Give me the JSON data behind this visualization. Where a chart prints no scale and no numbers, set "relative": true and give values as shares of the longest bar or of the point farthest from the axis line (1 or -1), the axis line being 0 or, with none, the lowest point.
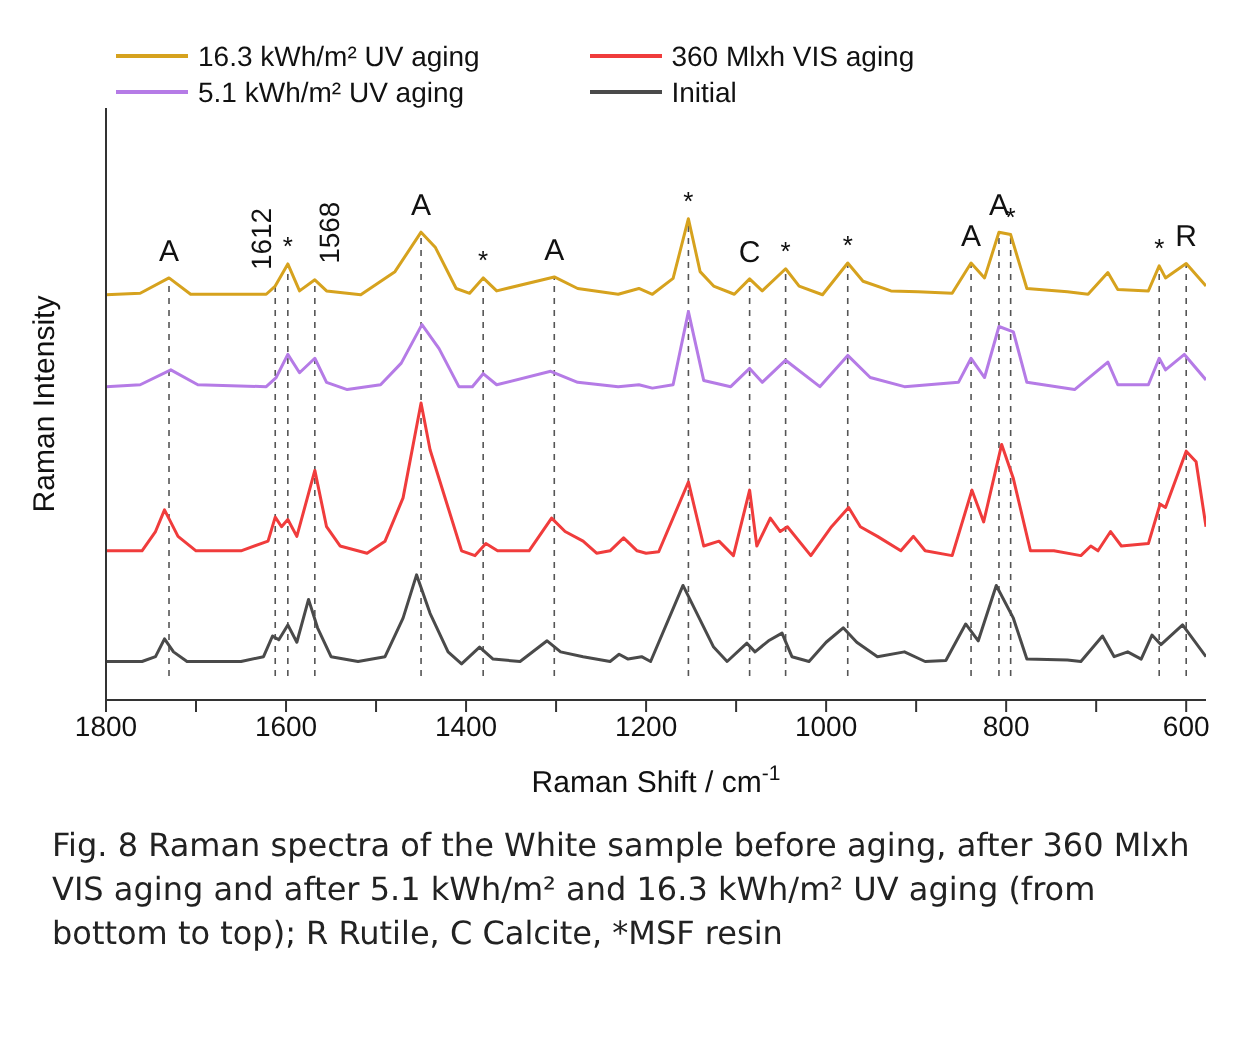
{
  "chart_data": {
    "type": "line",
    "relative": true,
    "xlabel": "Raman Shift / cm$^{-1}$",
    "ylabel": "Raman Intensity",
    "xlim": [
      1800,
      578
    ],
    "xticks": [
      1800,
      {
        "value": 1700,
        "label": null
      },
      1600,
      {
        "value": 1500,
        "label": null
      },
      1400,
      {
        "value": 1300,
        "label": null
      },
      1200,
      {
        "value": 1100,
        "label": null
      },
      1000,
      {
        "value": 900,
        "label": null
      },
      800,
      {
        "value": 700,
        "label": null
      },
      600
    ],
    "legend": "top left",
    "grid": false,
    "series": [
      {
        "name": "16.3 kWh/m² UV aging",
        "color": "#d6a21e",
        "x": [
          1800,
          1762,
          1730,
          1706,
          1622,
          1612,
          1598,
          1585,
          1568,
          1555,
          1517,
          1479,
          1450,
          1434,
          1411,
          1396,
          1381,
          1366,
          1302,
          1276,
          1231,
          1208,
          1193,
          1170,
          1153,
          1140,
          1125,
          1102,
          1085,
          1071,
          1045,
          1030,
          1004,
          976,
          959,
          928,
          898,
          860,
          839,
          824,
          808,
          795,
          777,
          732,
          709,
          687,
          676,
          642,
          630,
          623,
          600,
          578
        ],
        "values": [
          0.842,
          0.845,
          0.877,
          0.843,
          0.843,
          0.86,
          0.906,
          0.85,
          0.873,
          0.85,
          0.842,
          0.89,
          0.972,
          0.94,
          0.855,
          0.845,
          0.877,
          0.85,
          0.879,
          0.855,
          0.843,
          0.855,
          0.843,
          0.876,
          1,
          0.89,
          0.86,
          0.843,
          0.875,
          0.85,
          0.896,
          0.86,
          0.842,
          0.908,
          0.87,
          0.85,
          0.848,
          0.845,
          0.908,
          0.877,
          0.972,
          0.967,
          0.855,
          0.848,
          0.843,
          0.888,
          0.853,
          0.85,
          0.902,
          0.877,
          0.907,
          0.86
        ]
      },
      {
        "name": "360 Mlxh VIS aging",
        "color": "#f03c3c",
        "x": [
          1800,
          1760,
          1745,
          1735,
          1720,
          1700,
          1650,
          1620,
          1612,
          1605,
          1598,
          1588,
          1568,
          1555,
          1540,
          1510,
          1490,
          1470,
          1450,
          1440,
          1420,
          1405,
          1390,
          1378,
          1365,
          1330,
          1305,
          1290,
          1270,
          1255,
          1240,
          1225,
          1210,
          1200,
          1186,
          1153,
          1136,
          1119,
          1103,
          1085,
          1077,
          1062,
          1051,
          1043,
          1017,
          994,
          975,
          962,
          943,
          917,
          903,
          890,
          860,
          838,
          825,
          805,
          792,
          773,
          747,
          717,
          706,
          698,
          684,
          672,
          642,
          629,
          623,
          600,
          589,
          578
        ],
        "values": [
          0.31,
          0.31,
          0.35,
          0.395,
          0.34,
          0.31,
          0.31,
          0.33,
          0.38,
          0.36,
          0.375,
          0.34,
          0.477,
          0.36,
          0.32,
          0.305,
          0.33,
          0.42,
          0.617,
          0.52,
          0.4,
          0.31,
          0.3,
          0.325,
          0.31,
          0.31,
          0.378,
          0.35,
          0.33,
          0.305,
          0.31,
          0.337,
          0.31,
          0.305,
          0.308,
          0.453,
          0.32,
          0.33,
          0.3,
          0.436,
          0.32,
          0.378,
          0.35,
          0.36,
          0.3,
          0.36,
          0.4,
          0.36,
          0.34,
          0.31,
          0.34,
          0.31,
          0.3,
          0.436,
          0.37,
          0.531,
          0.46,
          0.31,
          0.31,
          0.3,
          0.32,
          0.31,
          0.35,
          0.32,
          0.325,
          0.407,
          0.4,
          0.517,
          0.495,
          0.36
        ]
      },
      {
        "name": "5.1 kWh/m² UV aging",
        "color": "#b57be6",
        "x": [
          1800,
          1762,
          1728,
          1698,
          1622,
          1611,
          1598,
          1585,
          1568,
          1555,
          1532,
          1495,
          1472,
          1449,
          1430,
          1408,
          1393,
          1381,
          1366,
          1306,
          1276,
          1231,
          1208,
          1193,
          1170,
          1153,
          1136,
          1106,
          1085,
          1071,
          1045,
          1007,
          976,
          951,
          913,
          853,
          839,
          824,
          808,
          792,
          777,
          724,
          687,
          676,
          642,
          630,
          623,
          602,
          578
        ],
        "values": [
          0.651,
          0.655,
          0.686,
          0.655,
          0.651,
          0.67,
          0.718,
          0.68,
          0.71,
          0.66,
          0.645,
          0.655,
          0.7,
          0.78,
          0.73,
          0.651,
          0.651,
          0.678,
          0.655,
          0.683,
          0.66,
          0.651,
          0.655,
          0.648,
          0.655,
          0.807,
          0.664,
          0.651,
          0.689,
          0.66,
          0.706,
          0.651,
          0.716,
          0.67,
          0.651,
          0.66,
          0.71,
          0.67,
          0.776,
          0.765,
          0.66,
          0.645,
          0.702,
          0.655,
          0.655,
          0.71,
          0.686,
          0.718,
          0.665
        ]
      },
      {
        "name": "Initial",
        "color": "#4a4a4a",
        "x": [
          1800,
          1760,
          1745,
          1735,
          1725,
          1710,
          1650,
          1625,
          1615,
          1608,
          1598,
          1588,
          1575,
          1565,
          1550,
          1520,
          1490,
          1470,
          1455,
          1440,
          1420,
          1405,
          1385,
          1370,
          1340,
          1310,
          1295,
          1270,
          1240,
          1230,
          1220,
          1205,
          1195,
          1159,
          1125,
          1110,
          1088,
          1079,
          1064,
          1049,
          1038,
          1019,
          1000,
          981,
          966,
          943,
          913,
          890,
          867,
          845,
          831,
          811,
          792,
          777,
          732,
          717,
          693,
          680,
          665,
          650,
          638,
          628,
          604,
          578
        ],
        "values": [
          0.08,
          0.08,
          0.09,
          0.127,
          0.1,
          0.08,
          0.08,
          0.09,
          0.133,
          0.125,
          0.156,
          0.12,
          0.209,
          0.15,
          0.09,
          0.08,
          0.09,
          0.17,
          0.26,
          0.18,
          0.1,
          0.075,
          0.11,
          0.085,
          0.08,
          0.123,
          0.1,
          0.09,
          0.08,
          0.095,
          0.085,
          0.09,
          0.08,
          0.238,
          0.11,
          0.08,
          0.118,
          0.1,
          0.123,
          0.139,
          0.09,
          0.08,
          0.12,
          0.15,
          0.12,
          0.09,
          0.1,
          0.08,
          0.082,
          0.158,
          0.123,
          0.238,
          0.17,
          0.085,
          0.083,
          0.08,
          0.133,
          0.09,
          0.1,
          0.085,
          0.135,
          0.115,
          0.156,
          0.09
        ]
      }
    ],
    "ref_lines": [
      {
        "axis": "x",
        "value": 1730,
        "color": "#555555",
        "line_style": "dashed"
      },
      {
        "axis": "x",
        "value": 1612,
        "color": "#555555",
        "line_style": "dashed"
      },
      {
        "axis": "x",
        "value": 1598,
        "color": "#555555",
        "line_style": "dashed"
      },
      {
        "axis": "x",
        "value": 1568,
        "color": "#555555",
        "line_style": "dashed"
      },
      {
        "axis": "x",
        "value": 1450,
        "color": "#555555",
        "line_style": "dashed"
      },
      {
        "axis": "x",
        "value": 1381,
        "color": "#555555",
        "line_style": "dashed"
      },
      {
        "axis": "x",
        "value": 1302,
        "color": "#555555",
        "line_style": "dashed"
      },
      {
        "axis": "x",
        "value": 1153,
        "color": "#555555",
        "line_style": "dashed"
      },
      {
        "axis": "x",
        "value": 1085,
        "color": "#555555",
        "line_style": "dashed"
      },
      {
        "axis": "x",
        "value": 1045,
        "color": "#555555",
        "line_style": "dashed"
      },
      {
        "axis": "x",
        "value": 976,
        "color": "#555555",
        "line_style": "dashed"
      },
      {
        "axis": "x",
        "value": 839,
        "color": "#555555",
        "line_style": "dashed"
      },
      {
        "axis": "x",
        "value": 808,
        "color": "#555555",
        "line_style": "dashed"
      },
      {
        "axis": "x",
        "value": 795,
        "color": "#555555",
        "line_style": "dashed"
      },
      {
        "axis": "x",
        "value": 630,
        "color": "#555555",
        "line_style": "dashed"
      },
      {
        "axis": "x",
        "value": 600,
        "color": "#555555",
        "line_style": "dashed"
      }
    ],
    "annotations": [
      {
        "text": "A",
        "x": 1730,
        "y": 0.877
      },
      {
        "text": "1612",
        "x": 1612,
        "y": 0.86
      },
      {
        "text": "*",
        "x": 1598,
        "y": 0.906
      },
      {
        "text": "1568",
        "x": 1568,
        "y": 0.873
      },
      {
        "text": "A",
        "x": 1450,
        "y": 0.972
      },
      {
        "text": "*",
        "x": 1381,
        "y": 0.877
      },
      {
        "text": "A",
        "x": 1302,
        "y": 0.879
      },
      {
        "text": "*",
        "x": 1153,
        "y": 1
      },
      {
        "text": "C",
        "x": 1085,
        "y": 0.875
      },
      {
        "text": "*",
        "x": 1045,
        "y": 0.896
      },
      {
        "text": "*",
        "x": 976,
        "y": 0.908
      },
      {
        "text": "A",
        "x": 839,
        "y": 0.908
      },
      {
        "text": "A",
        "x": 808,
        "y": 0.972
      },
      {
        "text": "*",
        "x": 795,
        "y": 0.967
      },
      {
        "text": "*",
        "x": 630,
        "y": 0.902
      },
      {
        "text": "R",
        "x": 600,
        "y": 0.907
      },
      "Fig. 8  Raman spectra of the White sample before aging, after 360 Mlxh VIS aging and after 5.1 kWh/m² and 16.3 kWh/m² UV aging (from bottom to top); R Rutile, C Calcite, *MSF resin"
    ]
  }
}
